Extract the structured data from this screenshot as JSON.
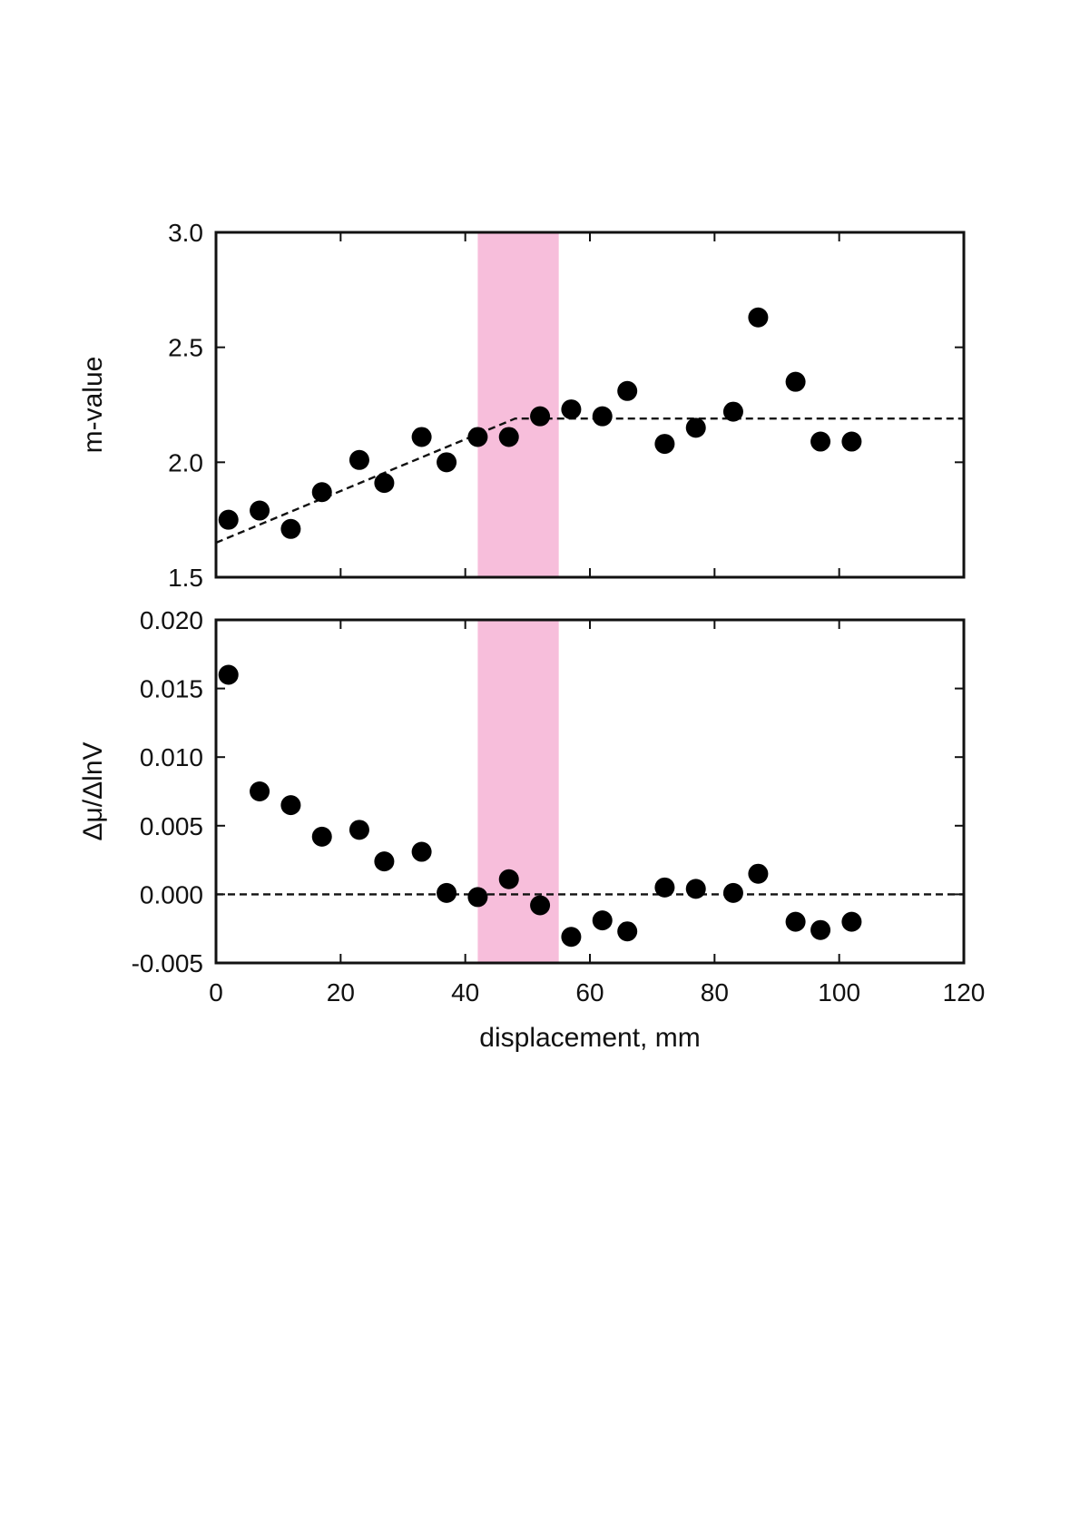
{
  "chart_data": [
    {
      "type": "scatter",
      "ylabel": "m-value",
      "xlim": [
        0,
        120
      ],
      "ylim": [
        1.5,
        3.0
      ],
      "yticks": [
        "1.5",
        "2.0",
        "2.5",
        "3.0"
      ],
      "grid": false,
      "highlight_band_x": [
        42,
        55
      ],
      "highlight_color": "#f7bedb",
      "marker_color": "#000000",
      "series": [
        {
          "x": [
            2,
            7,
            12,
            17,
            23,
            27,
            33,
            37,
            42,
            47,
            52,
            57,
            62,
            66,
            72,
            77,
            83,
            87,
            93,
            97,
            102
          ],
          "y": [
            1.75,
            1.79,
            1.71,
            1.87,
            2.01,
            1.91,
            2.11,
            2.0,
            2.11,
            2.11,
            2.2,
            2.23,
            2.2,
            2.31,
            2.08,
            2.15,
            2.22,
            2.63,
            2.35,
            2.09,
            2.09
          ]
        }
      ],
      "fit_line": {
        "style": "dashed",
        "x": [
          0,
          48,
          120
        ],
        "y": [
          1.65,
          2.19,
          2.19
        ]
      }
    },
    {
      "type": "scatter",
      "ylabel": "Δμ/ΔlnV",
      "xlabel": "displacement, mm",
      "xlim": [
        0,
        120
      ],
      "ylim": [
        -0.005,
        0.02
      ],
      "xticks": [
        "0",
        "20",
        "40",
        "60",
        "80",
        "100",
        "120"
      ],
      "yticks": [
        "-0.005",
        "0.000",
        "0.005",
        "0.010",
        "0.015",
        "0.020"
      ],
      "grid": false,
      "highlight_band_x": [
        42,
        55
      ],
      "highlight_color": "#f7bedb",
      "marker_color": "#000000",
      "series": [
        {
          "x": [
            2,
            7,
            12,
            17,
            23,
            27,
            33,
            37,
            42,
            47,
            52,
            57,
            62,
            66,
            72,
            77,
            83,
            87,
            93,
            97,
            102
          ],
          "y": [
            0.016,
            0.0075,
            0.0065,
            0.0042,
            0.0047,
            0.0024,
            0.0031,
            0.0001,
            -0.0002,
            0.0011,
            -0.0008,
            -0.0031,
            -0.0019,
            -0.0027,
            0.0005,
            0.0004,
            0.0001,
            0.0015,
            -0.002,
            -0.0026,
            -0.002
          ]
        }
      ],
      "fit_line": {
        "style": "dashed",
        "x": [
          0,
          120
        ],
        "y": [
          0,
          0
        ]
      }
    }
  ]
}
